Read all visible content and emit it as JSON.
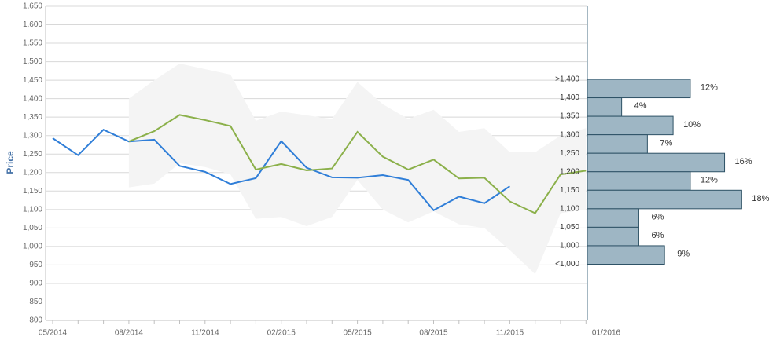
{
  "chart_data": {
    "type": "line",
    "y_label": "Price",
    "categories": [
      "05/2014",
      null,
      null,
      "08/2014",
      null,
      null,
      "11/2014",
      null,
      null,
      "02/2015",
      null,
      null,
      "05/2015",
      null,
      null,
      "08/2015",
      null,
      null,
      "11/2015",
      null,
      null,
      null
    ],
    "ylim": [
      800,
      1650
    ],
    "yticks": [
      800,
      850,
      900,
      950,
      {
        "value": 1000,
        "label": "1,000"
      },
      {
        "value": 1050,
        "label": "1,050"
      },
      {
        "value": 1100,
        "label": "1,100"
      },
      {
        "value": 1150,
        "label": "1,150"
      },
      {
        "value": 1200,
        "label": "1,200"
      },
      {
        "value": 1250,
        "label": "1,250"
      },
      {
        "value": 1300,
        "label": "1,300"
      },
      {
        "value": 1350,
        "label": "1,350"
      },
      {
        "value": 1400,
        "label": "1,400"
      },
      {
        "value": 1450,
        "label": "1,450"
      },
      {
        "value": 1500,
        "label": "1,500"
      },
      {
        "value": 1550,
        "label": "1,550"
      },
      {
        "value": 1600,
        "label": "1,600"
      },
      {
        "value": 1650,
        "label": "1,650"
      }
    ],
    "grid": true,
    "series": [
      {
        "color": "#2f7ed8",
        "values": [
          1293,
          1247,
          1316,
          1284,
          1289,
          1218,
          1202,
          1169,
          1185,
          1285,
          1213,
          1187,
          1186,
          1193,
          1180,
          1098,
          1135,
          1117,
          1163,
          null,
          null,
          null
        ]
      },
      {
        "color": "#8bb04a",
        "values": [
          null,
          null,
          null,
          1284,
          1312,
          1356,
          1342,
          1326,
          1208,
          1223,
          1206,
          1211,
          1310,
          1243,
          1208,
          1235,
          1184,
          1186,
          1122,
          1090,
          1195,
          1205
        ]
      }
    ],
    "band": {
      "color": "#f4f4f4",
      "upper": [
        null,
        null,
        null,
        1400,
        1450,
        1495,
        1480,
        1465,
        1340,
        1365,
        1355,
        1345,
        1445,
        1385,
        1345,
        1370,
        1310,
        1320,
        1255,
        1255,
        1300,
        1320
      ],
      "lower": [
        null,
        null,
        null,
        1160,
        1170,
        1225,
        1215,
        1195,
        1075,
        1080,
        1055,
        1080,
        1180,
        1100,
        1065,
        1095,
        1060,
        1050,
        990,
        925,
        1090,
        1100
      ]
    },
    "histogram": {
      "date": "01/2016",
      "color": "#9eb6c4",
      "edge_labels": [
        ">1,400",
        "1,400",
        "1,350",
        "1,300",
        "1,250",
        "1,200",
        "1,150",
        "1,100",
        "1,050",
        "1,000",
        "<1,000"
      ],
      "values": [
        12,
        4,
        10,
        7,
        16,
        12,
        18,
        6,
        6,
        9
      ],
      "value_labels": [
        "12%",
        "4%",
        "10%",
        "7%",
        "16%",
        "12%",
        "18%",
        "6%",
        "6%",
        "9%"
      ],
      "xlim": [
        0,
        22
      ]
    }
  }
}
